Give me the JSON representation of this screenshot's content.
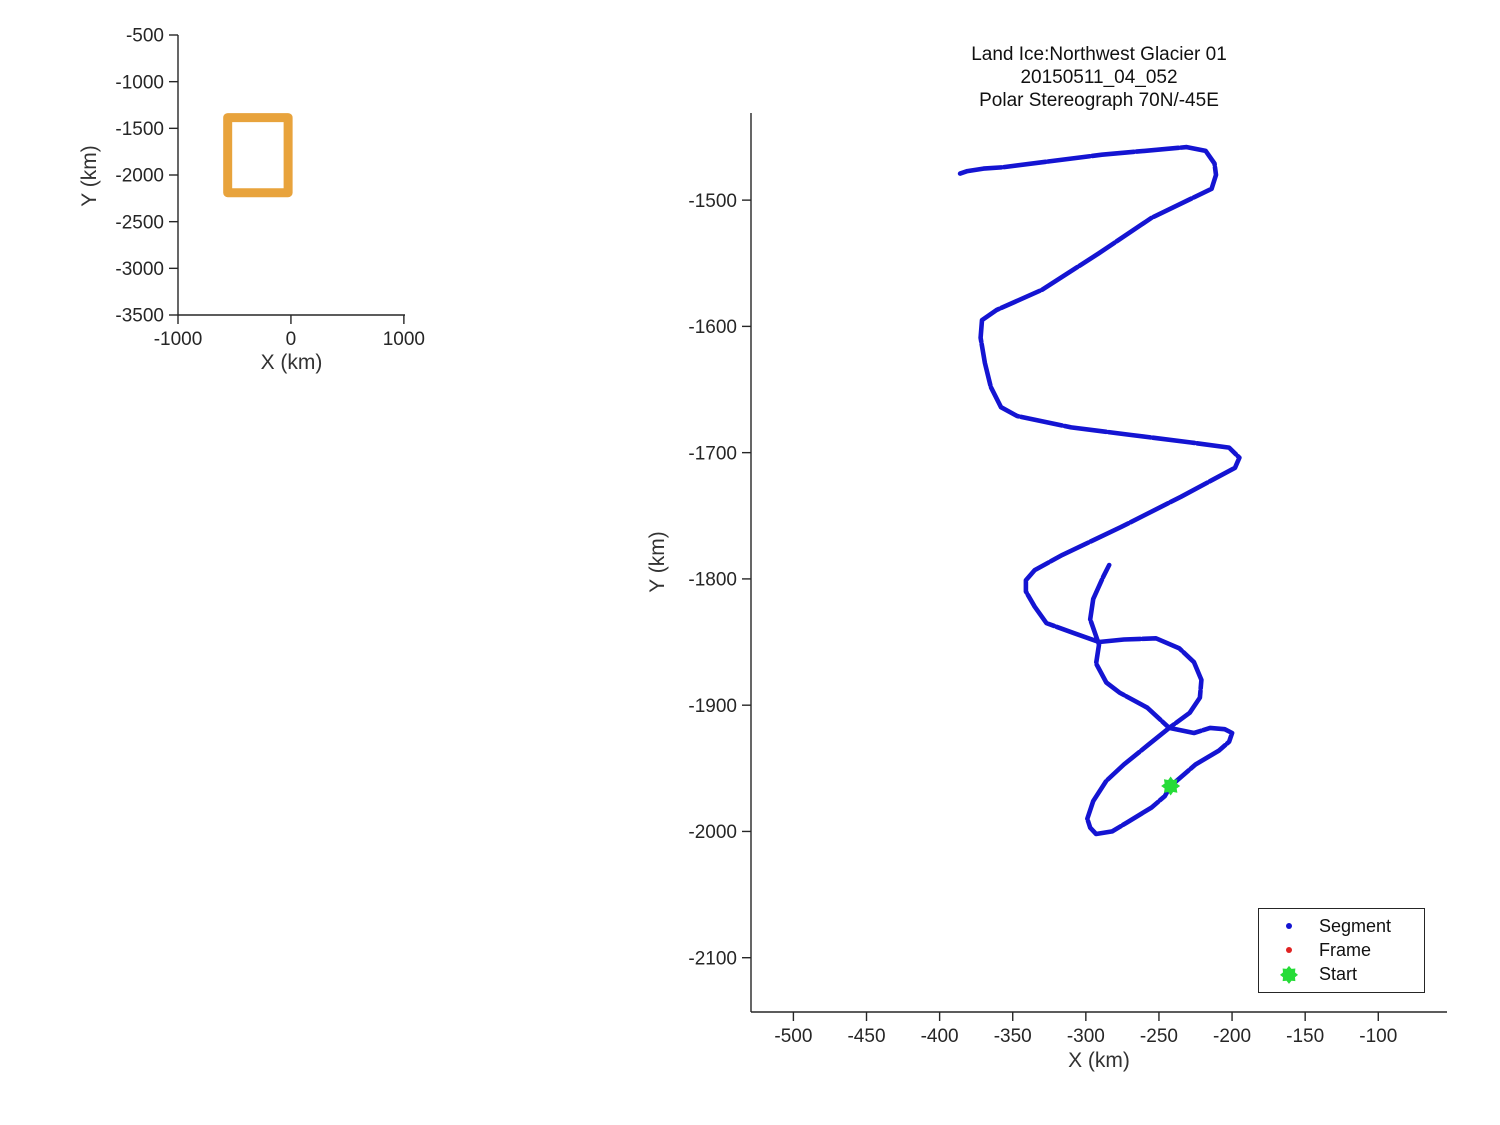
{
  "chart_data": [
    {
      "name": "overview-locator",
      "type": "line",
      "xlabel": "X (km)",
      "ylabel": "Y (km)",
      "xlim": [
        -1000,
        1010
      ],
      "ylim": [
        -3500,
        -500
      ],
      "xticks": [
        -1000,
        0,
        1000
      ],
      "yticks": [
        -500,
        -1000,
        -1500,
        -2000,
        -2500,
        -3000,
        -3500
      ],
      "grid": false,
      "series": [
        {
          "name": "coverage-outline",
          "color": "#e8a33c",
          "shape": "rectangle",
          "rect": {
            "x0": -560,
            "x1": -25,
            "y_top": -1385,
            "y_bottom": -2190
          }
        }
      ]
    },
    {
      "name": "trajectory",
      "type": "line",
      "title": [
        "Land Ice:Northwest Glacier 01",
        "20150511_04_052",
        "Polar Stereograph 70N/-45E"
      ],
      "xlabel": "X (km)",
      "ylabel": "Y (km)",
      "xlim": [
        -529,
        -53
      ],
      "ylim": [
        -2143,
        -1431
      ],
      "xticks": [
        -500,
        -450,
        -400,
        -350,
        -300,
        -250,
        -200,
        -150,
        -100
      ],
      "yticks": [
        -1500,
        -1600,
        -1700,
        -1800,
        -1900,
        -2000,
        -2100
      ],
      "grid": false,
      "path_color": "#1414d2",
      "start_marker": {
        "x": -242,
        "y": -1964,
        "color": "#26dc38"
      },
      "path": [
        [
          -386,
          -1479
        ],
        [
          -381,
          -1477
        ],
        [
          -370,
          -1475
        ],
        [
          -357,
          -1474
        ],
        [
          -289,
          -1464
        ],
        [
          -231,
          -1458
        ],
        [
          -218,
          -1461
        ],
        [
          -212,
          -1471
        ],
        [
          -211,
          -1480
        ],
        [
          -214,
          -1491
        ],
        [
          -255,
          -1514
        ],
        [
          -291,
          -1542
        ],
        [
          -330,
          -1571
        ],
        [
          -361,
          -1587
        ],
        [
          -371,
          -1595
        ],
        [
          -372,
          -1609
        ],
        [
          -369,
          -1629
        ],
        [
          -365,
          -1648
        ],
        [
          -358,
          -1664
        ],
        [
          -347,
          -1671
        ],
        [
          -310,
          -1680
        ],
        [
          -269,
          -1686
        ],
        [
          -228,
          -1692
        ],
        [
          -202,
          -1696
        ],
        [
          -195,
          -1704
        ],
        [
          -198,
          -1712
        ],
        [
          -235,
          -1735
        ],
        [
          -276,
          -1759
        ],
        [
          -316,
          -1781
        ],
        [
          -335,
          -1793
        ],
        [
          -341,
          -1801
        ],
        [
          -341,
          -1810
        ],
        [
          -335,
          -1822
        ],
        [
          -327,
          -1835
        ],
        [
          -308,
          -1843
        ],
        [
          -291,
          -1850
        ],
        [
          -274,
          -1848
        ],
        [
          -252,
          -1847
        ],
        [
          -236,
          -1855
        ],
        [
          -226,
          -1866
        ],
        [
          -221,
          -1880
        ],
        [
          -222,
          -1894
        ],
        [
          -229,
          -1906
        ],
        [
          -243,
          -1918
        ],
        [
          -258,
          -1932
        ],
        [
          -274,
          -1947
        ],
        [
          -286,
          -1960
        ],
        [
          -295,
          -1976
        ],
        [
          -299,
          -1990
        ],
        [
          -297,
          -1997
        ],
        [
          -293,
          -2002
        ],
        [
          -282,
          -2000
        ],
        [
          -272,
          -1993
        ],
        [
          -255,
          -1981
        ],
        [
          -246,
          -1972
        ],
        [
          -242,
          -1964
        ],
        [
          -231,
          -1953
        ],
        [
          -225,
          -1947
        ],
        [
          -209,
          -1936
        ],
        [
          -202,
          -1929
        ],
        [
          -200,
          -1922
        ],
        [
          -205,
          -1919
        ],
        [
          -215,
          -1918
        ],
        [
          -226,
          -1922
        ],
        [
          -243,
          -1918
        ],
        [
          -258,
          -1902
        ],
        [
          -277,
          -1890
        ],
        [
          -286,
          -1882
        ],
        [
          -293,
          -1867
        ],
        [
          -291,
          -1852
        ],
        [
          -297,
          -1832
        ],
        [
          -295,
          -1816
        ],
        [
          -288,
          -1798
        ],
        [
          -284,
          -1789
        ]
      ],
      "legend": {
        "position": "lower right",
        "items": [
          {
            "label": "Segment",
            "marker": "dot",
            "color": "#1414d2"
          },
          {
            "label": "Frame",
            "marker": "dot",
            "color": "#e02222"
          },
          {
            "label": "Start",
            "marker": "star",
            "color": "#26dc38"
          }
        ]
      }
    }
  ],
  "colors": {
    "axis": "#262626",
    "tick_label": "#262626",
    "background": "#ffffff"
  }
}
